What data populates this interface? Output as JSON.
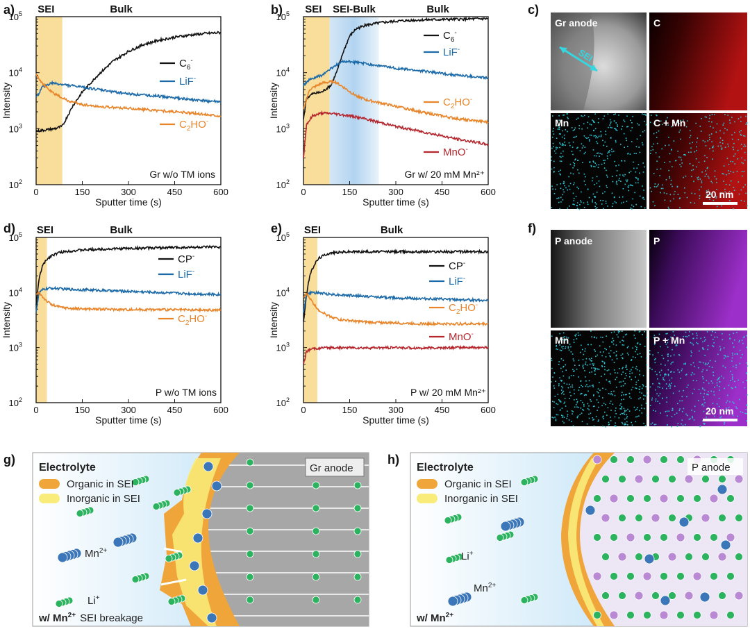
{
  "panel_labels": [
    "a)",
    "b)",
    "c)",
    "d)",
    "e)",
    "f)",
    "g)",
    "h)"
  ],
  "chart_data": [
    {
      "id": "a",
      "type": "line",
      "yscale": "log",
      "xlabel": "Sputter time (s)",
      "ylabel": "Intensity",
      "xlim": [
        0,
        600
      ],
      "ylim": [
        100,
        100000
      ],
      "xticks": [
        "0",
        "150",
        "300",
        "450",
        "600"
      ],
      "regions": [
        {
          "label": "SEI",
          "x0": 0,
          "x1": 85,
          "color": "#f7d27a"
        }
      ],
      "region_labels": [
        {
          "text": "SEI",
          "x": 5
        },
        {
          "text": "Bulk",
          "x": 240
        }
      ],
      "condition": "Gr w/o TM ions",
      "series": [
        {
          "name": "C6-",
          "color": "#111111",
          "x": [
            0,
            30,
            60,
            85,
            100,
            120,
            150,
            200,
            250,
            300,
            350,
            400,
            450,
            500,
            550,
            600
          ],
          "y": [
            900,
            950,
            1000,
            1100,
            1600,
            2600,
            4500,
            9000,
            16000,
            24000,
            32000,
            38000,
            43000,
            47000,
            50000,
            52000
          ]
        },
        {
          "name": "LiF-",
          "color": "#1c6aa8",
          "x": [
            0,
            20,
            50,
            100,
            150,
            200,
            300,
            400,
            500,
            600
          ],
          "y": [
            3500,
            5500,
            6500,
            6000,
            5500,
            5000,
            4200,
            3800,
            3300,
            3000
          ]
        },
        {
          "name": "C2HO-",
          "color": "#e8852a",
          "x": [
            0,
            20,
            50,
            100,
            150,
            200,
            300,
            400,
            500,
            600
          ],
          "y": [
            9500,
            6500,
            4500,
            3200,
            2700,
            2500,
            2300,
            2100,
            1900,
            1700
          ]
        }
      ]
    },
    {
      "id": "b",
      "type": "line",
      "yscale": "log",
      "xlabel": "Sputter time (s)",
      "ylabel": "Intensity",
      "xlim": [
        0,
        600
      ],
      "ylim": [
        100,
        100000
      ],
      "xticks": [
        "0",
        "150",
        "300",
        "450",
        "600"
      ],
      "regions": [
        {
          "label": "SEI",
          "x0": 0,
          "x1": 85,
          "color": "#f7d27a"
        },
        {
          "label": "SEI-Bulk",
          "x0": 85,
          "x1": 245,
          "color": "#9cc8ec"
        }
      ],
      "region_labels": [
        {
          "text": "SEI",
          "x": 5
        },
        {
          "text": "SEI-Bulk",
          "x": 95
        },
        {
          "text": "Bulk",
          "x": 400
        }
      ],
      "condition": "Gr w/ 20 mM Mn²⁺",
      "series": [
        {
          "name": "C6-",
          "color": "#111111",
          "x": [
            0,
            10,
            30,
            60,
            90,
            110,
            130,
            150,
            170,
            200,
            250,
            300,
            350,
            400,
            500,
            600
          ],
          "y": [
            1500,
            3500,
            4200,
            4500,
            6000,
            11000,
            24000,
            45000,
            60000,
            70000,
            78000,
            83000,
            86000,
            88000,
            90000,
            92000
          ]
        },
        {
          "name": "LiF-",
          "color": "#1c6aa8",
          "x": [
            0,
            20,
            60,
            100,
            130,
            160,
            200,
            300,
            400,
            500,
            600
          ],
          "y": [
            6000,
            7500,
            9000,
            13000,
            16000,
            15500,
            14500,
            12000,
            10500,
            9000,
            8000
          ]
        },
        {
          "name": "C2HO-",
          "color": "#e8852a",
          "x": [
            0,
            20,
            60,
            100,
            130,
            160,
            200,
            300,
            400,
            500,
            600
          ],
          "y": [
            2200,
            5000,
            6500,
            7000,
            5500,
            4200,
            3300,
            2500,
            1900,
            1500,
            1300
          ]
        },
        {
          "name": "MnO-",
          "color": "#b5262d",
          "x": [
            0,
            10,
            30,
            60,
            100,
            150,
            200,
            300,
            400,
            500,
            600
          ],
          "y": [
            300,
            1200,
            1700,
            1900,
            1850,
            1700,
            1500,
            1100,
            850,
            650,
            520
          ]
        }
      ]
    },
    {
      "id": "d",
      "type": "line",
      "yscale": "log",
      "xlabel": "Sputter time (s)",
      "ylabel": "Intensity",
      "xlim": [
        0,
        600
      ],
      "ylim": [
        100,
        100000
      ],
      "xticks": [
        "0",
        "150",
        "300",
        "450",
        "600"
      ],
      "regions": [
        {
          "label": "SEI",
          "x0": 0,
          "x1": 35,
          "color": "#f7d27a"
        }
      ],
      "region_labels": [
        {
          "text": "SEI",
          "x": 2
        },
        {
          "text": "Bulk",
          "x": 240
        }
      ],
      "condition": "P w/o TM ions",
      "series": [
        {
          "name": "CP-",
          "color": "#111111",
          "x": [
            0,
            10,
            20,
            35,
            50,
            75,
            100,
            150,
            200,
            300,
            400,
            500,
            600
          ],
          "y": [
            6000,
            18000,
            30000,
            40000,
            47000,
            53000,
            56000,
            59000,
            61000,
            63000,
            65000,
            66000,
            67000
          ]
        },
        {
          "name": "LiF-",
          "color": "#1c6aa8",
          "x": [
            0,
            10,
            25,
            50,
            100,
            200,
            300,
            400,
            500,
            600
          ],
          "y": [
            4500,
            10000,
            11500,
            12000,
            11500,
            11000,
            10500,
            10000,
            9500,
            9200
          ]
        },
        {
          "name": "C2HO-",
          "color": "#e8852a",
          "x": [
            0,
            10,
            20,
            35,
            50,
            80,
            120,
            200,
            300,
            400,
            500,
            600
          ],
          "y": [
            9000,
            10000,
            8500,
            7000,
            6000,
            5400,
            5100,
            5000,
            4900,
            4900,
            4800,
            4800
          ]
        }
      ]
    },
    {
      "id": "e",
      "type": "line",
      "yscale": "log",
      "xlabel": "Sputter time (s)",
      "ylabel": "Intensity",
      "xlim": [
        0,
        600
      ],
      "ylim": [
        100,
        100000
      ],
      "xticks": [
        "0",
        "150",
        "300",
        "450",
        "600"
      ],
      "regions": [
        {
          "label": "SEI",
          "x0": 0,
          "x1": 45,
          "color": "#f7d27a"
        }
      ],
      "region_labels": [
        {
          "text": "SEI",
          "x": 2
        },
        {
          "text": "Bulk",
          "x": 250
        }
      ],
      "condition": "P w/ 20 mM Mn²⁺",
      "series": [
        {
          "name": "CP-",
          "color": "#111111",
          "x": [
            0,
            10,
            20,
            35,
            50,
            75,
            100,
            150,
            200,
            300,
            400,
            500,
            600
          ],
          "y": [
            3000,
            9000,
            20000,
            32000,
            42000,
            50000,
            53000,
            55000,
            55000,
            55000,
            55000,
            55000,
            55000
          ]
        },
        {
          "name": "LiF-",
          "color": "#1c6aa8",
          "x": [
            0,
            10,
            25,
            50,
            100,
            200,
            300,
            400,
            500,
            600
          ],
          "y": [
            4500,
            9000,
            10000,
            9800,
            9200,
            8500,
            8000,
            7700,
            7400,
            7200
          ]
        },
        {
          "name": "C2HO-",
          "color": "#e8852a",
          "x": [
            0,
            10,
            20,
            35,
            50,
            80,
            120,
            200,
            300,
            400,
            500,
            600
          ],
          "y": [
            8000,
            9500,
            8000,
            6000,
            4800,
            3800,
            3200,
            2900,
            2800,
            2700,
            2700,
            2700
          ]
        },
        {
          "name": "MnO-",
          "color": "#b5262d",
          "x": [
            0,
            10,
            30,
            60,
            100,
            200,
            300,
            400,
            500,
            600
          ],
          "y": [
            500,
            850,
            950,
            980,
            1000,
            980,
            1000,
            980,
            1000,
            1000
          ]
        }
      ]
    }
  ],
  "legend_text": {
    "C6": {
      "base": "C",
      "sub": "6",
      "sup": "-"
    },
    "LiF": {
      "base": "LiF",
      "sup": "-"
    },
    "C2HO": {
      "pre": "C",
      "sub": "2",
      "post": "HO",
      "sup": "-"
    },
    "MnO": {
      "base": "MnO",
      "sup": "-"
    },
    "CP": {
      "base": "CP",
      "sup": "-"
    }
  },
  "tick_exponents": {
    "base": "10",
    "exps": [
      "5",
      "4",
      "3",
      "2"
    ]
  },
  "map_c": {
    "tiles": [
      "Gr anode",
      "C",
      "Mn",
      "C + Mn"
    ],
    "arrow_label": "SEI",
    "scale_bar": "20 nm"
  },
  "map_f": {
    "tiles": [
      "P anode",
      "P",
      "Mn",
      "P + Mn"
    ],
    "scale_bar": "20 nm"
  },
  "schematic_g": {
    "title": "Electrolyte",
    "anode": "Gr anode",
    "legend": [
      "Organic in SEI",
      "Inorganic in SEI"
    ],
    "ion_mn": "Mn",
    "ion_mn_sup": "2+",
    "ion_li": "Li",
    "ion_li_sup": "+",
    "note_prefix": "w/ Mn",
    "note_sup": "2+",
    "note_suffix": "SEI breakage"
  },
  "schematic_h": {
    "title": "Electrolyte",
    "anode": "P anode",
    "legend": [
      "Organic in SEI",
      "Inorganic in SEI"
    ],
    "ion_li": "Li",
    "ion_li_sup": "+",
    "ion_mn": "Mn",
    "ion_mn_sup": "2+",
    "note_prefix": "w/ Mn",
    "note_sup": "2+"
  },
  "colors": {
    "sei": "#f7d27a",
    "seibulk": "#9cc8ec",
    "organic": "#f0a53a",
    "inorganic": "#f9ec7a",
    "li": "#2bb35f",
    "mn": "#3b77b8",
    "p": "#b989d4"
  }
}
